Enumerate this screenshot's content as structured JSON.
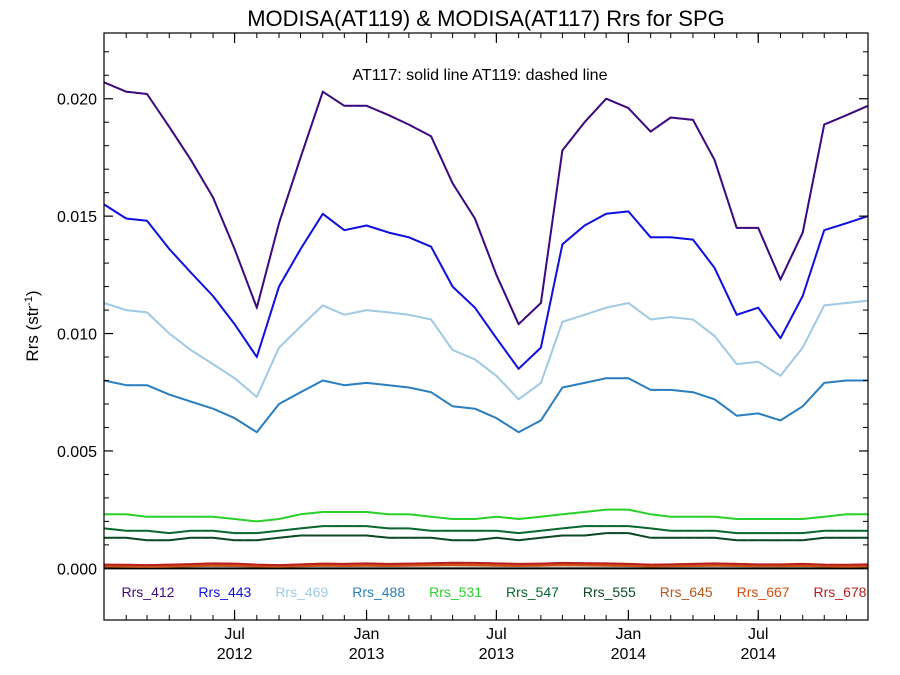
{
  "chart_data": {
    "type": "line",
    "title": "MODISA(AT119) & MODISA(AT117)  Rrs for SPG",
    "annotation": "AT117: solid line   AT119: dashed line",
    "ylabel": "Rrs (str",
    "ylabel_sup": "-1",
    "ylabel_close": ")",
    "ylim": [
      -0.0022,
      0.0228
    ],
    "yticks": [
      {
        "value": 0.0,
        "label": "0.000"
      },
      {
        "value": 0.005,
        "label": "0.005"
      },
      {
        "value": 0.01,
        "label": "0.010"
      },
      {
        "value": 0.015,
        "label": "0.015"
      },
      {
        "value": 0.02,
        "label": "0.020"
      }
    ],
    "xlim": [
      "2012-01-01",
      "2014-12-01"
    ],
    "xticks": [
      {
        "date": "2012-07-01",
        "line1": "Jul",
        "line2": "2012"
      },
      {
        "date": "2013-01-01",
        "line1": "Jan",
        "line2": "2013"
      },
      {
        "date": "2013-07-01",
        "line1": "Jul",
        "line2": "2013"
      },
      {
        "date": "2014-01-01",
        "line1": "Jan",
        "line2": "2014"
      },
      {
        "date": "2014-07-01",
        "line1": "Jul",
        "line2": "2014"
      }
    ],
    "dates": [
      "2012-01-01",
      "2012-02-01",
      "2012-03-01",
      "2012-04-01",
      "2012-05-01",
      "2012-06-01",
      "2012-07-01",
      "2012-08-01",
      "2012-09-01",
      "2012-10-01",
      "2012-11-01",
      "2012-12-01",
      "2013-01-01",
      "2013-02-01",
      "2013-03-01",
      "2013-04-01",
      "2013-05-01",
      "2013-06-01",
      "2013-07-01",
      "2013-08-01",
      "2013-09-01",
      "2013-10-01",
      "2013-11-01",
      "2013-12-01",
      "2014-01-01",
      "2014-02-01",
      "2014-03-01",
      "2014-04-01",
      "2014-05-01",
      "2014-06-01",
      "2014-07-01",
      "2014-08-01",
      "2014-09-01",
      "2014-10-01",
      "2014-11-01",
      "2014-12-01"
    ],
    "series": [
      {
        "name": "Rrs_412",
        "color": "#3d0a80",
        "values": [
          0.0207,
          0.0203,
          0.0202,
          0.0188,
          0.0174,
          0.0158,
          0.0136,
          0.0111,
          0.0147,
          0.0175,
          0.0203,
          0.0197,
          0.0197,
          0.0193,
          0.0189,
          0.0184,
          0.0164,
          0.0149,
          0.0125,
          0.0104,
          0.0113,
          0.0178,
          0.019,
          0.02,
          0.0196,
          0.0186,
          0.0192,
          0.0191,
          0.0174,
          0.0145,
          0.0145,
          0.0123,
          0.0143,
          0.0189,
          0.0193,
          0.0197
        ]
      },
      {
        "name": "Rrs_443",
        "color": "#1010e0",
        "values": [
          0.0155,
          0.0149,
          0.0148,
          0.0136,
          0.0126,
          0.0116,
          0.0104,
          0.009,
          0.012,
          0.0136,
          0.0151,
          0.0144,
          0.0146,
          0.0143,
          0.0141,
          0.0137,
          0.012,
          0.0111,
          0.0098,
          0.0085,
          0.0094,
          0.0138,
          0.0146,
          0.0151,
          0.0152,
          0.0141,
          0.0141,
          0.014,
          0.0128,
          0.0108,
          0.0111,
          0.0098,
          0.0116,
          0.0144,
          0.0147,
          0.015
        ]
      },
      {
        "name": "Rrs_469",
        "color": "#a0cae4",
        "values": [
          0.0113,
          0.011,
          0.0109,
          0.01,
          0.0093,
          0.0087,
          0.0081,
          0.0073,
          0.0094,
          0.0103,
          0.0112,
          0.0108,
          0.011,
          0.0109,
          0.0108,
          0.0106,
          0.0093,
          0.0089,
          0.0082,
          0.0072,
          0.0079,
          0.0105,
          0.0108,
          0.0111,
          0.0113,
          0.0106,
          0.0107,
          0.0106,
          0.0099,
          0.0087,
          0.0088,
          0.0082,
          0.0094,
          0.0112,
          0.0113,
          0.0114
        ]
      },
      {
        "name": "Rrs_488",
        "color": "#2b7fc0",
        "values": [
          0.008,
          0.0078,
          0.0078,
          0.0074,
          0.0071,
          0.0068,
          0.0064,
          0.0058,
          0.007,
          0.0075,
          0.008,
          0.0078,
          0.0079,
          0.0078,
          0.0077,
          0.0075,
          0.0069,
          0.0068,
          0.0064,
          0.0058,
          0.0063,
          0.0077,
          0.0079,
          0.0081,
          0.0081,
          0.0076,
          0.0076,
          0.0075,
          0.0072,
          0.0065,
          0.0066,
          0.0063,
          0.0069,
          0.0079,
          0.008,
          0.008
        ]
      },
      {
        "name": "Rrs_531",
        "color": "#2cd02c",
        "values": [
          0.0023,
          0.0023,
          0.0022,
          0.0022,
          0.0022,
          0.0022,
          0.0021,
          0.002,
          0.0021,
          0.0023,
          0.0024,
          0.0024,
          0.0024,
          0.0023,
          0.0023,
          0.0022,
          0.0021,
          0.0021,
          0.0022,
          0.0021,
          0.0022,
          0.0023,
          0.0024,
          0.0025,
          0.0025,
          0.0023,
          0.0022,
          0.0022,
          0.0022,
          0.0021,
          0.0021,
          0.0021,
          0.0021,
          0.0022,
          0.0023,
          0.0023
        ]
      },
      {
        "name": "Rrs_547",
        "color": "#0a6830",
        "values": [
          0.0017,
          0.0016,
          0.0016,
          0.0015,
          0.0016,
          0.0016,
          0.0015,
          0.0015,
          0.0016,
          0.0017,
          0.0018,
          0.0018,
          0.0018,
          0.0017,
          0.0017,
          0.0016,
          0.0016,
          0.0016,
          0.0016,
          0.0015,
          0.0016,
          0.0017,
          0.0018,
          0.0018,
          0.0018,
          0.0017,
          0.0016,
          0.0016,
          0.0016,
          0.0015,
          0.0015,
          0.0015,
          0.0015,
          0.0016,
          0.0016,
          0.0016
        ]
      },
      {
        "name": "Rrs_555",
        "color": "#0c4a25",
        "values": [
          0.0013,
          0.0013,
          0.0012,
          0.0012,
          0.0013,
          0.0013,
          0.0012,
          0.0012,
          0.0013,
          0.0014,
          0.0014,
          0.0014,
          0.0014,
          0.0013,
          0.0013,
          0.0013,
          0.0012,
          0.0012,
          0.0013,
          0.0012,
          0.0013,
          0.0014,
          0.0014,
          0.0015,
          0.0015,
          0.0013,
          0.0013,
          0.0013,
          0.0013,
          0.0012,
          0.0012,
          0.0012,
          0.0012,
          0.0013,
          0.0013,
          0.0013
        ]
      },
      {
        "name": "Rrs_645",
        "color": "#b85820",
        "values": [
          8e-05,
          7e-05,
          6e-05,
          7e-05,
          9e-05,
          0.00011,
          0.0001,
          8e-05,
          7e-05,
          9e-05,
          0.00011,
          0.0001,
          0.00011,
          0.0001,
          0.00011,
          0.00012,
          0.00013,
          0.00012,
          0.00011,
          0.0001,
          0.00011,
          0.00013,
          0.00012,
          0.00011,
          0.0001,
          8e-05,
          9e-05,
          0.0001,
          0.00011,
          0.0001,
          9e-05,
          9e-05,
          0.0001,
          8e-05,
          7e-05,
          8e-05
        ]
      },
      {
        "name": "Rrs_667",
        "color": "#d45010",
        "values": [
          0.00012,
          0.00011,
          0.0001,
          0.00011,
          0.00013,
          0.00015,
          0.00014,
          0.00011,
          0.0001,
          0.00012,
          0.00014,
          0.00013,
          0.00014,
          0.00013,
          0.00014,
          0.00015,
          0.00016,
          0.00015,
          0.00014,
          0.00013,
          0.00014,
          0.00016,
          0.00015,
          0.00014,
          0.00013,
          0.00011,
          0.00012,
          0.00013,
          0.00014,
          0.00013,
          0.00012,
          0.00012,
          0.00013,
          0.00011,
          0.0001,
          0.00012
        ]
      },
      {
        "name": "Rrs_678",
        "color": "#b82020",
        "values": [
          0.00016,
          0.00015,
          0.00014,
          0.00016,
          0.00018,
          0.00021,
          0.0002,
          0.00016,
          0.00014,
          0.00017,
          0.0002,
          0.00019,
          0.00021,
          0.00019,
          0.0002,
          0.00022,
          0.00024,
          0.00023,
          0.00021,
          0.00019,
          0.0002,
          0.00023,
          0.00022,
          0.00021,
          0.00019,
          0.00016,
          0.00017,
          0.00019,
          0.00021,
          0.00019,
          0.00017,
          0.00017,
          0.00019,
          0.00016,
          0.00015,
          0.00017
        ]
      }
    ]
  }
}
